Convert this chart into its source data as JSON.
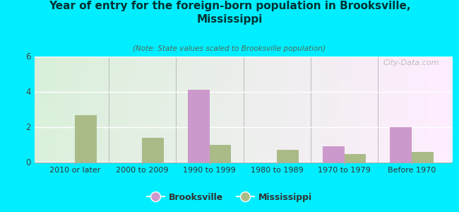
{
  "title": "Year of entry for the foreign-born population in Brooksville,\nMississippi",
  "subtitle": "(Note: State values scaled to Brooksville population)",
  "categories": [
    "2010 or later",
    "2000 to 2009",
    "1990 to 1999",
    "1980 to 1989",
    "1970 to 1979",
    "Before 1970"
  ],
  "brooksville_values": [
    0,
    0,
    4.1,
    0,
    0.9,
    2.0
  ],
  "mississippi_values": [
    2.65,
    1.4,
    1.0,
    0.7,
    0.45,
    0.6
  ],
  "brooksville_color": "#cc99cc",
  "mississippi_color": "#aabb88",
  "background_outer": "#00eeff",
  "ylim": [
    0,
    6
  ],
  "yticks": [
    0,
    2,
    4,
    6
  ],
  "bar_width": 0.32,
  "watermark": "City-Data.com"
}
